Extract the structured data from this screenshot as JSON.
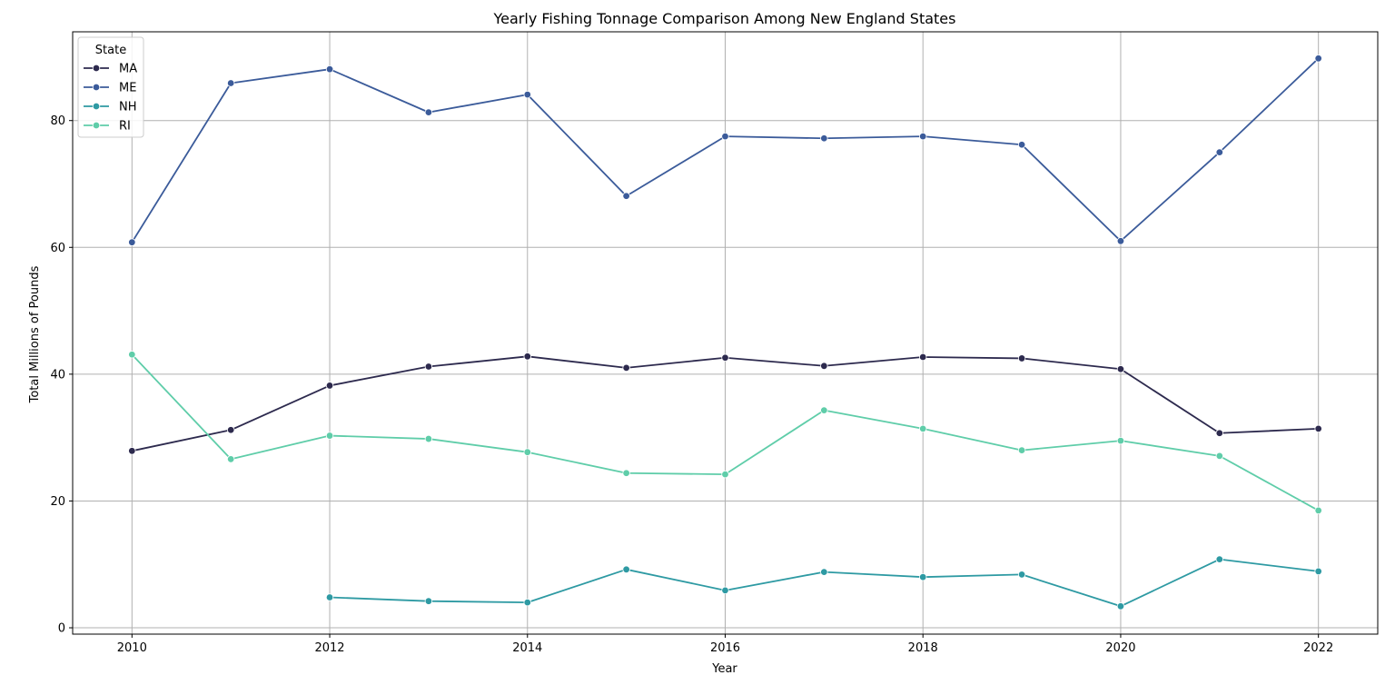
{
  "chart_data": {
    "type": "line",
    "title": "Yearly Fishing Tonnage Comparison Among New England States",
    "xlabel": "Year",
    "ylabel": "Total Millions of Pounds",
    "xlim": [
      2009.4,
      2022.6
    ],
    "ylim": [
      -1,
      94
    ],
    "xticks": [
      2010,
      2012,
      2014,
      2016,
      2018,
      2020,
      2022
    ],
    "yticks": [
      0,
      20,
      40,
      60,
      80
    ],
    "grid": true,
    "legend": {
      "title": "State",
      "placement": "top-left"
    },
    "series": [
      {
        "name": "MA",
        "color": "#2d2a4e",
        "x": [
          2010,
          2011,
          2012,
          2013,
          2014,
          2015,
          2016,
          2017,
          2018,
          2019,
          2020,
          2021,
          2022
        ],
        "y": [
          27.9,
          31.2,
          38.2,
          41.2,
          42.8,
          41.0,
          42.6,
          41.3,
          42.7,
          42.5,
          40.8,
          30.7,
          31.4
        ]
      },
      {
        "name": "ME",
        "color": "#3b5b9a",
        "x": [
          2010,
          2011,
          2012,
          2013,
          2014,
          2015,
          2016,
          2017,
          2018,
          2019,
          2020,
          2021,
          2022
        ],
        "y": [
          60.8,
          85.9,
          88.1,
          81.3,
          84.1,
          68.1,
          77.5,
          77.2,
          77.5,
          76.2,
          61.0,
          75.0,
          89.8
        ]
      },
      {
        "name": "NH",
        "color": "#2e9aa3",
        "x": [
          2012,
          2013,
          2014,
          2015,
          2016,
          2017,
          2018,
          2019,
          2020,
          2021,
          2022
        ],
        "y": [
          4.8,
          4.2,
          4.0,
          9.2,
          5.9,
          8.8,
          8.0,
          8.4,
          3.4,
          10.8,
          8.9
        ]
      },
      {
        "name": "RI",
        "color": "#5fcda9",
        "x": [
          2010,
          2011,
          2012,
          2013,
          2014,
          2015,
          2016,
          2017,
          2018,
          2019,
          2020,
          2021,
          2022
        ],
        "y": [
          43.1,
          26.6,
          30.3,
          29.8,
          27.7,
          24.4,
          24.2,
          34.3,
          31.4,
          28.0,
          29.5,
          27.1,
          18.5
        ]
      }
    ]
  }
}
